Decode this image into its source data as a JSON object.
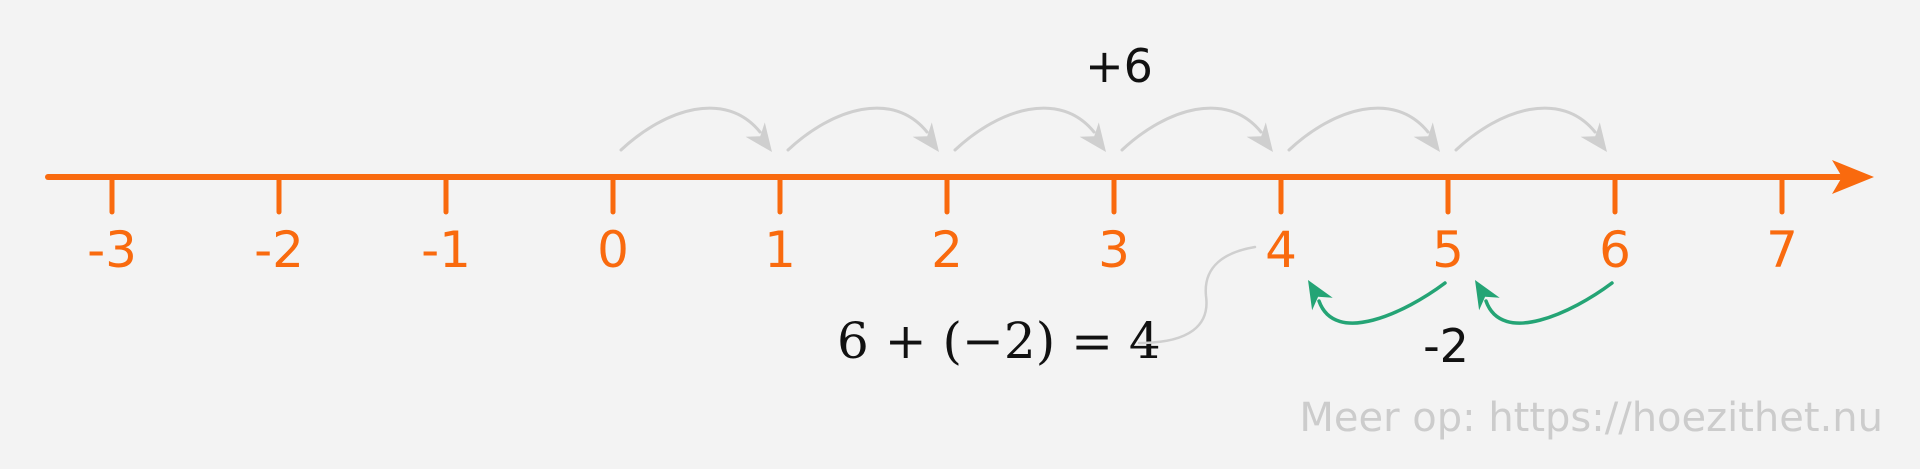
{
  "number_line": {
    "ticks": [
      {
        "value": -3,
        "label": "-3"
      },
      {
        "value": -2,
        "label": "-2"
      },
      {
        "value": -1,
        "label": "-1"
      },
      {
        "value": 0,
        "label": "0"
      },
      {
        "value": 1,
        "label": "1"
      },
      {
        "value": 2,
        "label": "2"
      },
      {
        "value": 3,
        "label": "3"
      },
      {
        "value": 4,
        "label": "4"
      },
      {
        "value": 5,
        "label": "5"
      },
      {
        "value": 6,
        "label": "6"
      },
      {
        "value": 7,
        "label": "7"
      }
    ]
  },
  "jumps": {
    "forward": {
      "label": "+6",
      "from": 0,
      "to": 6
    },
    "backward": {
      "label": "-2",
      "from": 6,
      "to": 4
    }
  },
  "equation": "6 + (−2) = 4",
  "watermark": "Meer op: https://hoezithet.nu",
  "colors": {
    "axis": "#f96a0e",
    "forward_arrows": "#cfcfcf",
    "backward_arrows": "#24a475",
    "connector": "#cfcfcf",
    "text": "#111111",
    "watermark": "#cccccc",
    "background": "#f3f3f3"
  }
}
